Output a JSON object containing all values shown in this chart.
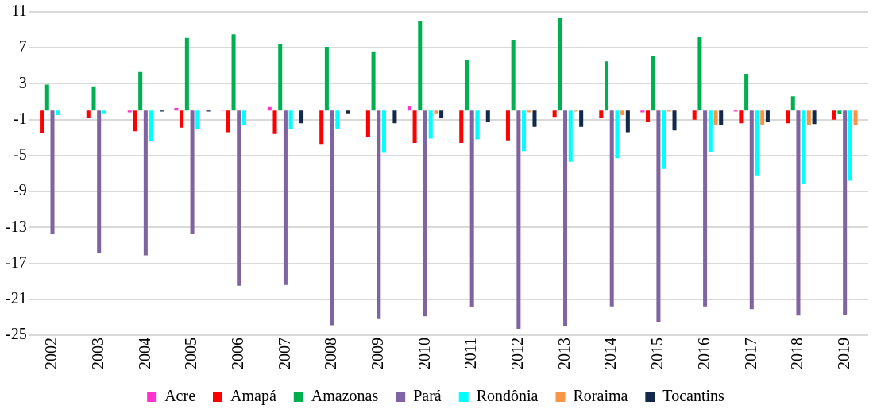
{
  "chart_data": {
    "type": "bar",
    "categories": [
      "2002",
      "2003",
      "2004",
      "2005",
      "2006",
      "2007",
      "2008",
      "2009",
      "2010",
      "2011",
      "2012",
      "2013",
      "2014",
      "2015",
      "2016",
      "2017",
      "2018",
      "2019"
    ],
    "series": [
      {
        "name": "Acre",
        "color": "#ff33cc",
        "values": [
          0,
          0,
          -0.2,
          0.3,
          0.1,
          0.4,
          0,
          0,
          0.5,
          0,
          0,
          0,
          0,
          -0.2,
          0,
          -0.1,
          0,
          0
        ]
      },
      {
        "name": "Amapá",
        "color": "#ff0000",
        "values": [
          -2.5,
          -0.8,
          -2.3,
          -1.9,
          -2.4,
          -2.6,
          -3.7,
          -2.9,
          -3.6,
          -3.6,
          -3.3,
          -0.7,
          -0.8,
          -1.2,
          -1.0,
          -1.4,
          -1.4,
          -1.0
        ]
      },
      {
        "name": "Amazonas",
        "color": "#00b050",
        "values": [
          2.9,
          2.7,
          4.3,
          8.1,
          8.5,
          7.4,
          7.1,
          6.6,
          10.0,
          5.7,
          7.9,
          10.3,
          5.5,
          6.1,
          8.2,
          4.1,
          1.6,
          -0.4
        ]
      },
      {
        "name": "Pará",
        "color": "#8064a2",
        "values": [
          -13.7,
          -15.8,
          -16.1,
          -13.7,
          -19.5,
          -19.4,
          -23.9,
          -23.2,
          -22.9,
          -21.9,
          -24.3,
          -24.0,
          -21.8,
          -23.5,
          -21.8,
          -22.1,
          -22.8,
          -22.7
        ]
      },
      {
        "name": "Rondônia",
        "color": "#00ffff",
        "values": [
          -0.5,
          -0.3,
          -3.4,
          -2.0,
          -1.6,
          -2.0,
          -2.1,
          -4.7,
          -3.1,
          -3.2,
          -4.5,
          -5.7,
          -5.3,
          -6.5,
          -4.6,
          -7.2,
          -8.2,
          -7.8
        ]
      },
      {
        "name": "Roraima",
        "color": "#f79646",
        "values": [
          0,
          0,
          0,
          0,
          0,
          0,
          0,
          0,
          -0.3,
          0,
          -0.2,
          -0.1,
          -0.5,
          -0.1,
          -1.6,
          -1.6,
          -1.6,
          -1.6
        ]
      },
      {
        "name": "Tocantins",
        "color": "#13294b",
        "values": [
          0,
          0,
          -0.1,
          -0.1,
          0,
          -1.4,
          -0.3,
          -1.4,
          -0.8,
          -1.2,
          -1.8,
          -1.8,
          -2.4,
          -2.2,
          -1.6,
          -1.2,
          -1.5,
          0
        ]
      }
    ],
    "ylim": [
      -25,
      11
    ],
    "yticks": [
      -25,
      -21,
      -17,
      -13,
      -9,
      -5,
      -1,
      3,
      7,
      11
    ],
    "grid": "y",
    "legend": "bottom"
  }
}
